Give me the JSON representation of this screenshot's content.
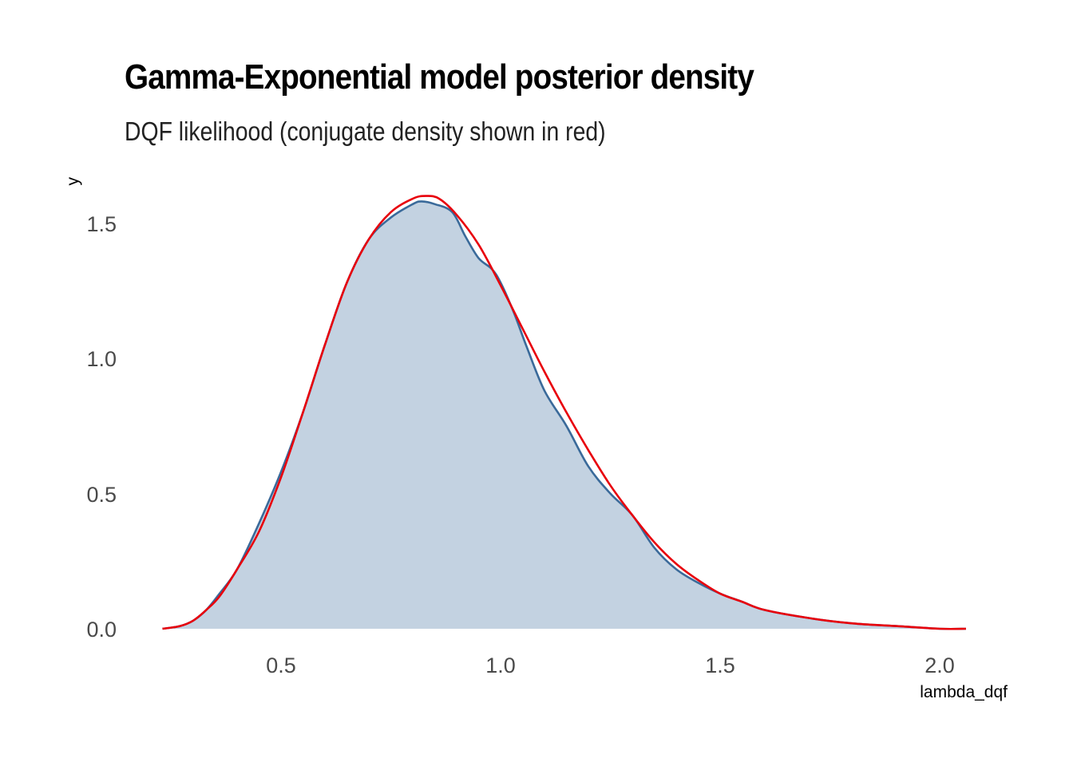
{
  "chart_data": {
    "type": "area",
    "title": "Gamma-Exponential model posterior density",
    "subtitle": "DQF likelihood (conjugate density shown in red)",
    "xlabel": "lambda_dqf",
    "ylabel": "y",
    "xlim": [
      0.2,
      2.1
    ],
    "ylim": [
      0.0,
      1.6
    ],
    "x_ticks": [
      "0.5",
      "1.0",
      "1.5",
      "2.0"
    ],
    "y_ticks": [
      "0.0",
      "0.5",
      "1.0",
      "1.5"
    ],
    "grid": false,
    "colors": {
      "fill": "#c3d2e1",
      "kde_line": "#3a6a9a",
      "conjugate_line": "#e8000b"
    },
    "series": [
      {
        "x": [
          0.23,
          0.27,
          0.3,
          0.33,
          0.36,
          0.4,
          0.45,
          0.5,
          0.55,
          0.6,
          0.65,
          0.7,
          0.75,
          0.8,
          0.82,
          0.85,
          0.89,
          0.92,
          0.95,
          0.98,
          1.0,
          1.03,
          1.06,
          1.1,
          1.15,
          1.2,
          1.25,
          1.3,
          1.35,
          1.4,
          1.45,
          1.5,
          1.55,
          1.6,
          1.7,
          1.8,
          1.9,
          2.0,
          2.06
        ],
        "values": [
          0.0,
          0.01,
          0.03,
          0.07,
          0.13,
          0.22,
          0.39,
          0.58,
          0.8,
          1.05,
          1.28,
          1.44,
          1.52,
          1.57,
          1.58,
          1.57,
          1.54,
          1.45,
          1.37,
          1.33,
          1.28,
          1.17,
          1.04,
          0.88,
          0.75,
          0.6,
          0.5,
          0.42,
          0.3,
          0.22,
          0.17,
          0.13,
          0.1,
          0.07,
          0.04,
          0.02,
          0.01,
          0.0,
          0.0
        ]
      },
      {
        "x": [
          0.23,
          0.27,
          0.3,
          0.33,
          0.36,
          0.4,
          0.45,
          0.5,
          0.55,
          0.6,
          0.65,
          0.7,
          0.75,
          0.8,
          0.83,
          0.86,
          0.9,
          0.95,
          1.0,
          1.05,
          1.1,
          1.15,
          1.2,
          1.25,
          1.3,
          1.35,
          1.4,
          1.45,
          1.5,
          1.55,
          1.6,
          1.7,
          1.8,
          1.9,
          2.0,
          2.06
        ],
        "values": [
          0.0,
          0.01,
          0.03,
          0.07,
          0.12,
          0.22,
          0.36,
          0.56,
          0.8,
          1.05,
          1.28,
          1.44,
          1.54,
          1.59,
          1.6,
          1.59,
          1.53,
          1.42,
          1.27,
          1.11,
          0.95,
          0.8,
          0.66,
          0.53,
          0.42,
          0.32,
          0.24,
          0.18,
          0.13,
          0.1,
          0.07,
          0.04,
          0.02,
          0.01,
          0.0,
          0.0
        ]
      }
    ]
  }
}
